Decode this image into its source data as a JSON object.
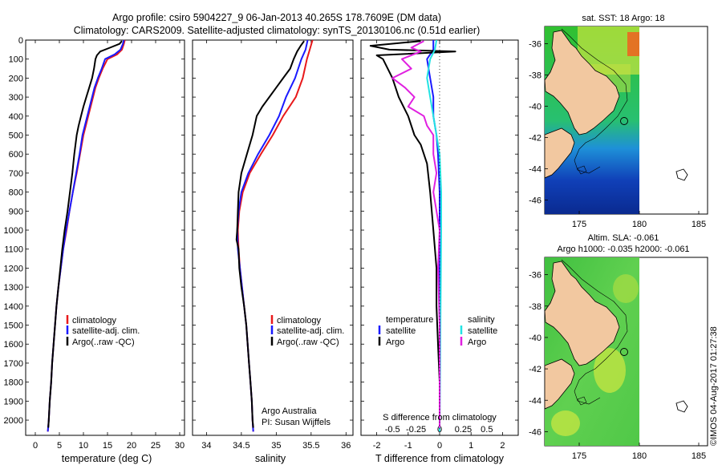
{
  "header": {
    "line1": "Argo profile: csiro 5904227_9 06-Jan-2013 40.265S 178.7609E (DM data)",
    "line2": "Climatology: CARS2009. Satellite-adjusted climatology: synTS_20130106.nc (0.51d earlier)"
  },
  "colors": {
    "climatology": "#e8191b",
    "satellite": "#1a1aff",
    "argo": "#000000",
    "temp_diff_sat": "#1a1aff",
    "sal_diff_sat": "#22e3e3",
    "sal_diff_argo": "#e020e0",
    "land": "#f2c8a0"
  },
  "chart_data": [
    {
      "id": "temperature",
      "type": "line",
      "xlabel": "temperature (deg C)",
      "ylabel": "",
      "xlim": [
        -2,
        31
      ],
      "ylim": [
        2080,
        0
      ],
      "xticks": [
        0,
        5,
        10,
        15,
        20,
        25,
        30
      ],
      "yticks": [
        0,
        100,
        200,
        300,
        400,
        500,
        600,
        700,
        800,
        900,
        1000,
        1100,
        1200,
        1300,
        1400,
        1500,
        1600,
        1700,
        1800,
        1900,
        2000
      ],
      "legend": [
        "climatology",
        "satellite-adj. clim.",
        "Argo(..raw -QC)"
      ],
      "series": [
        {
          "name": "climatology",
          "color": "climatology",
          "points": [
            [
              18.6,
              0
            ],
            [
              18.4,
              20
            ],
            [
              18,
              50
            ],
            [
              17,
              75
            ],
            [
              15,
              100
            ],
            [
              14,
              150
            ],
            [
              13.2,
              200
            ],
            [
              12.5,
              250
            ],
            [
              12,
              300
            ],
            [
              11.5,
              350
            ],
            [
              11,
              400
            ],
            [
              10.5,
              450
            ],
            [
              10,
              500
            ],
            [
              9.3,
              600
            ],
            [
              8.6,
              700
            ],
            [
              7.8,
              800
            ],
            [
              7.1,
              900
            ],
            [
              6.5,
              1000
            ],
            [
              5.8,
              1100
            ],
            [
              5.3,
              1200
            ],
            [
              4.8,
              1300
            ],
            [
              4.4,
              1400
            ],
            [
              4.1,
              1500
            ],
            [
              3.8,
              1600
            ],
            [
              3.5,
              1700
            ],
            [
              3.3,
              1800
            ],
            [
              3.0,
              1900
            ],
            [
              2.8,
              2000
            ],
            [
              2.6,
              2060
            ]
          ]
        },
        {
          "name": "satellite-adj. clim.",
          "color": "satellite",
          "points": [
            [
              18.4,
              0
            ],
            [
              18.2,
              20
            ],
            [
              17.7,
              50
            ],
            [
              16.5,
              75
            ],
            [
              14.5,
              100
            ],
            [
              13.8,
              150
            ],
            [
              13.0,
              200
            ],
            [
              12.3,
              250
            ],
            [
              11.8,
              300
            ],
            [
              11.3,
              350
            ],
            [
              10.8,
              400
            ],
            [
              10.3,
              450
            ],
            [
              9.8,
              500
            ],
            [
              9.2,
              600
            ],
            [
              8.5,
              700
            ],
            [
              7.8,
              800
            ],
            [
              7.1,
              900
            ],
            [
              6.4,
              1000
            ],
            [
              5.8,
              1100
            ],
            [
              5.3,
              1200
            ],
            [
              4.8,
              1300
            ],
            [
              4.4,
              1400
            ],
            [
              4.1,
              1500
            ],
            [
              3.8,
              1600
            ],
            [
              3.5,
              1700
            ],
            [
              3.3,
              1800
            ],
            [
              3.0,
              1900
            ],
            [
              2.8,
              2000
            ],
            [
              2.6,
              2060
            ]
          ]
        },
        {
          "name": "Argo(..raw -QC)",
          "color": "argo",
          "points": [
            [
              18.0,
              5
            ],
            [
              17.5,
              20
            ],
            [
              15.5,
              40
            ],
            [
              13.5,
              60
            ],
            [
              12.8,
              80
            ],
            [
              12.5,
              100
            ],
            [
              12.2,
              150
            ],
            [
              11.8,
              200
            ],
            [
              11.2,
              250
            ],
            [
              10.6,
              300
            ],
            [
              10.0,
              350
            ],
            [
              9.5,
              400
            ],
            [
              9.0,
              450
            ],
            [
              8.6,
              500
            ],
            [
              8.1,
              600
            ],
            [
              7.7,
              700
            ],
            [
              7.2,
              800
            ],
            [
              6.7,
              900
            ],
            [
              6.1,
              1000
            ],
            [
              5.6,
              1100
            ],
            [
              5.2,
              1200
            ],
            [
              4.8,
              1300
            ],
            [
              4.4,
              1400
            ],
            [
              4.1,
              1500
            ],
            [
              3.8,
              1600
            ],
            [
              3.5,
              1700
            ],
            [
              3.3,
              1800
            ],
            [
              3.0,
              1900
            ],
            [
              2.8,
              2000
            ],
            [
              2.7,
              2040
            ]
          ]
        }
      ]
    },
    {
      "id": "salinity",
      "type": "line",
      "xlabel": "salinity",
      "ylabel": "",
      "xlim": [
        33.8,
        36.1
      ],
      "ylim": [
        2080,
        0
      ],
      "xticks": [
        34,
        34.5,
        35,
        35.5,
        36
      ],
      "legend": [
        "climatology",
        "satellite-adj. clim.",
        "Argo(..raw -QC)"
      ],
      "annotation": [
        "Argo Australia",
        "PI: Susan Wijffels"
      ],
      "series": [
        {
          "name": "climatology",
          "color": "climatology",
          "points": [
            [
              35.52,
              0
            ],
            [
              35.48,
              50
            ],
            [
              35.44,
              100
            ],
            [
              35.38,
              200
            ],
            [
              35.28,
              300
            ],
            [
              35.1,
              400
            ],
            [
              34.95,
              500
            ],
            [
              34.78,
              600
            ],
            [
              34.62,
              700
            ],
            [
              34.52,
              800
            ],
            [
              34.47,
              900
            ],
            [
              34.45,
              1000
            ],
            [
              34.46,
              1100
            ],
            [
              34.48,
              1200
            ],
            [
              34.51,
              1300
            ],
            [
              34.54,
              1400
            ],
            [
              34.57,
              1500
            ],
            [
              34.59,
              1600
            ],
            [
              34.61,
              1700
            ],
            [
              34.63,
              1800
            ],
            [
              34.65,
              1900
            ],
            [
              34.66,
              2000
            ],
            [
              34.67,
              2060
            ]
          ]
        },
        {
          "name": "satellite-adj. clim.",
          "color": "satellite",
          "points": [
            [
              35.45,
              0
            ],
            [
              35.42,
              50
            ],
            [
              35.36,
              100
            ],
            [
              35.27,
              200
            ],
            [
              35.14,
              300
            ],
            [
              35.04,
              400
            ],
            [
              34.9,
              500
            ],
            [
              34.74,
              600
            ],
            [
              34.6,
              700
            ],
            [
              34.5,
              800
            ],
            [
              34.46,
              900
            ],
            [
              34.44,
              1000
            ],
            [
              34.45,
              1100
            ],
            [
              34.48,
              1200
            ],
            [
              34.51,
              1300
            ],
            [
              34.54,
              1400
            ],
            [
              34.57,
              1500
            ],
            [
              34.59,
              1600
            ],
            [
              34.61,
              1700
            ],
            [
              34.63,
              1800
            ],
            [
              34.65,
              1900
            ],
            [
              34.66,
              2000
            ],
            [
              34.67,
              2060
            ]
          ]
        },
        {
          "name": "Argo(..raw -QC)",
          "color": "argo",
          "points": [
            [
              35.4,
              5
            ],
            [
              35.35,
              30
            ],
            [
              35.3,
              60
            ],
            [
              35.25,
              100
            ],
            [
              35.2,
              150
            ],
            [
              35.1,
              200
            ],
            [
              35.0,
              250
            ],
            [
              34.9,
              300
            ],
            [
              34.8,
              350
            ],
            [
              34.72,
              400
            ],
            [
              34.66,
              500
            ],
            [
              34.58,
              600
            ],
            [
              34.5,
              700
            ],
            [
              34.46,
              800
            ],
            [
              34.45,
              900
            ],
            [
              34.44,
              1000
            ],
            [
              34.43,
              1050
            ],
            [
              34.46,
              1100
            ],
            [
              34.47,
              1200
            ],
            [
              34.5,
              1300
            ],
            [
              34.54,
              1400
            ],
            [
              34.57,
              1500
            ],
            [
              34.59,
              1600
            ],
            [
              34.61,
              1700
            ],
            [
              34.63,
              1800
            ],
            [
              34.65,
              1900
            ],
            [
              34.66,
              2000
            ],
            [
              34.67,
              2040
            ]
          ]
        }
      ]
    },
    {
      "id": "differences",
      "type": "line",
      "xlabel": "T difference from climatology",
      "xlabel2": "S difference from climatology",
      "xlim": [
        -2.5,
        2.5
      ],
      "ylim": [
        2080,
        0
      ],
      "xticks_T": [
        "-2",
        "-1",
        "0",
        "1",
        "2"
      ],
      "xticks_S": [
        "-0.5",
        "-0.25",
        "0",
        "0.25",
        "0.5"
      ],
      "legend_headers": [
        "temperature",
        "salinity"
      ],
      "legend": [
        "satellite",
        "Argo",
        "satellite",
        "Argo"
      ],
      "series": [
        {
          "name": "temperature satellite",
          "color": "temp_diff_sat",
          "points": [
            [
              -0.2,
              0
            ],
            [
              -0.2,
              50
            ],
            [
              -0.4,
              100
            ],
            [
              -0.3,
              200
            ],
            [
              -0.2,
              300
            ],
            [
              -0.2,
              400
            ],
            [
              -0.1,
              500
            ],
            [
              -0.05,
              600
            ],
            [
              0,
              800
            ],
            [
              0,
              2060
            ]
          ]
        },
        {
          "name": "temperature Argo",
          "color": "argo",
          "points": [
            [
              -0.6,
              5
            ],
            [
              -2.2,
              30
            ],
            [
              -1.6,
              50
            ],
            [
              0.5,
              60
            ],
            [
              -2.0,
              80
            ],
            [
              -1.8,
              100
            ],
            [
              -1.5,
              200
            ],
            [
              -1.3,
              300
            ],
            [
              -1.0,
              400
            ],
            [
              -0.8,
              500
            ],
            [
              -0.6,
              550
            ],
            [
              -0.4,
              650
            ],
            [
              -0.3,
              800
            ],
            [
              -0.2,
              1000
            ],
            [
              -0.1,
              1200
            ],
            [
              -0.1,
              1400
            ],
            [
              -0.05,
              1600
            ],
            [
              0,
              1800
            ],
            [
              0,
              2040
            ]
          ]
        },
        {
          "name": "salinity satellite",
          "color": "sal_diff_sat",
          "points": [
            [
              -0.1,
              0
            ],
            [
              -0.15,
              50
            ],
            [
              -0.3,
              100
            ],
            [
              -0.4,
              200
            ],
            [
              -0.3,
              300
            ],
            [
              -0.2,
              400
            ],
            [
              -0.1,
              500
            ],
            [
              0.0,
              600
            ],
            [
              0.05,
              800
            ],
            [
              0.05,
              1000
            ],
            [
              0,
              2060
            ]
          ]
        },
        {
          "name": "salinity Argo",
          "color": "sal_diff_argo",
          "points": [
            [
              -0.5,
              5
            ],
            [
              -0.9,
              40
            ],
            [
              -0.6,
              60
            ],
            [
              -1.2,
              100
            ],
            [
              -0.9,
              150
            ],
            [
              -1.5,
              200
            ],
            [
              -1.1,
              250
            ],
            [
              -0.8,
              300
            ],
            [
              -1.0,
              350
            ],
            [
              -0.5,
              400
            ],
            [
              -0.4,
              450
            ],
            [
              -0.2,
              500
            ],
            [
              -0.2,
              600
            ],
            [
              -0.1,
              700
            ],
            [
              -0.2,
              800
            ],
            [
              -0.1,
              900
            ],
            [
              0,
              1000
            ],
            [
              -0.05,
              1200
            ],
            [
              0,
              1500
            ],
            [
              0,
              2040
            ]
          ]
        }
      ]
    }
  ],
  "maps": {
    "xticks": [
      "175",
      "180",
      "185"
    ],
    "yticks": [
      "-36",
      "-38",
      "-40",
      "-42",
      "-44",
      "-46"
    ],
    "sst_title": "sat. SST: 18 Argo: 18",
    "sla_title1": "Altim. SLA: -0.061",
    "sla_title2": "Argo h1000: -0.035 h2000: -0.061"
  },
  "footer": {
    "vertical_text": "©IMOS 04-Aug-2017 01:27:38"
  }
}
